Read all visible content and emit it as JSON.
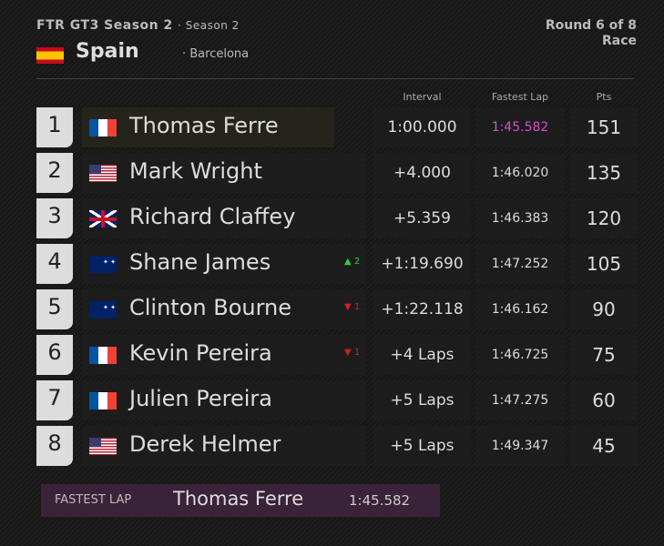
{
  "header": {
    "series": "FTR GT3 Season 2",
    "season": "· Season 2",
    "country": "Spain",
    "city": "· Barcelona",
    "round": "Round 6 of 8",
    "session": "Race"
  },
  "columns": {
    "interval": "Interval",
    "fastest_lap": "Fastest Lap",
    "pts": "Pts"
  },
  "colors": {
    "fastest": "#d050d0",
    "up": "#2ecc40",
    "down": "#cc2222"
  },
  "rows": [
    {
      "pos": "1",
      "flag": "fr",
      "name": "Thomas Ferre",
      "change": "",
      "interval": "1:00.000",
      "fastest_lap": "1:45.582",
      "pts": "151"
    },
    {
      "pos": "2",
      "flag": "us",
      "name": "Mark Wright",
      "change": "",
      "interval": "+4.000",
      "fastest_lap": "1:46.020",
      "pts": "135"
    },
    {
      "pos": "3",
      "flag": "gb",
      "name": "Richard Claffey",
      "change": "",
      "interval": "+5.359",
      "fastest_lap": "1:46.383",
      "pts": "120"
    },
    {
      "pos": "4",
      "flag": "au",
      "name": "Shane James",
      "change": "^2",
      "interval": "+1:19.690",
      "fastest_lap": "1:47.252",
      "pts": "105"
    },
    {
      "pos": "5",
      "flag": "au",
      "name": "Clinton Bourne",
      "change": "v1",
      "interval": "+1:22.118",
      "fastest_lap": "1:46.162",
      "pts": "90"
    },
    {
      "pos": "6",
      "flag": "fr",
      "name": "Kevin Pereira",
      "change": "v1",
      "interval": "+4 Laps",
      "fastest_lap": "1:46.725",
      "pts": "75"
    },
    {
      "pos": "7",
      "flag": "fr",
      "name": "Julien Pereira",
      "change": "",
      "interval": "+5 Laps",
      "fastest_lap": "1:47.275",
      "pts": "60"
    },
    {
      "pos": "8",
      "flag": "us",
      "name": "Derek Helmer",
      "change": "",
      "interval": "+5 Laps",
      "fastest_lap": "1:49.347",
      "pts": "45"
    }
  ],
  "fastest_lap": {
    "label": "FASTEST LAP",
    "driver": "Thomas Ferre",
    "time": "1:45.582"
  }
}
